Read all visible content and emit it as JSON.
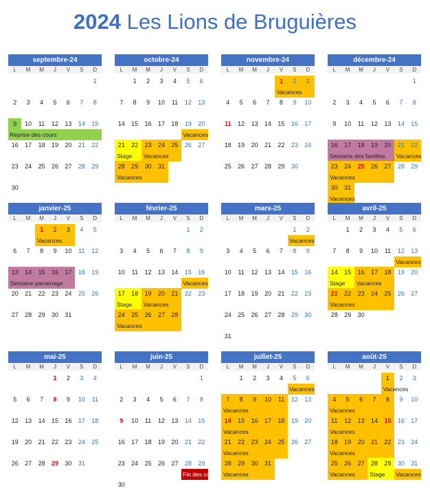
{
  "title": {
    "year": "2024",
    "text": "Les Lions de Bruguières"
  },
  "weekdays": [
    "L",
    "M",
    "M",
    "J",
    "V",
    "S",
    "D"
  ],
  "colors": {
    "header": "#4472c4",
    "vacances": "#ffc000",
    "stage": "#ffff00",
    "reprise": "#92d050",
    "semaine": "#c27ba0",
    "fin": "#c00000"
  },
  "months": [
    {
      "name": "septembre-24",
      "start": 6,
      "days": 30,
      "holidays": [],
      "bands": [
        {
          "color": "#92d050",
          "from": 9,
          "to": 9,
          "extend": false
        },
        {
          "color": "#92d050",
          "label_row": 2,
          "label_col_from": 0,
          "label_col_to": 6,
          "label": "Reprise des cours"
        }
      ]
    },
    {
      "name": "octobre-24",
      "start": 1,
      "days": 31,
      "holidays": [],
      "bands": [
        {
          "color": "#ffc000",
          "label_row": 2,
          "label_col_from": 5,
          "label_col_to": 6,
          "label": "Vacances"
        },
        {
          "color": "#ffff00",
          "from": 21,
          "to": 22,
          "extend": true,
          "label": "Stage"
        },
        {
          "color": "#ffc000",
          "from": 23,
          "to": 25,
          "extend": true,
          "label": "Vacances"
        },
        {
          "color": "#ffc000",
          "from": 28,
          "to": 31,
          "extend": true,
          "label": "Vacances"
        }
      ]
    },
    {
      "name": "novembre-24",
      "start": 4,
      "days": 30,
      "holidays": [
        1,
        11
      ],
      "bands": [
        {
          "color": "#ffc000",
          "from": 1,
          "to": 3,
          "extend": true,
          "label": "Vacances"
        }
      ]
    },
    {
      "name": "décembre-24",
      "start": 6,
      "days": 31,
      "holidays": [
        25
      ],
      "bands": [
        {
          "color": "#c27ba0",
          "from": 16,
          "to": 20,
          "extend": true,
          "label": "Semaine des familles"
        },
        {
          "color": "#ffc000",
          "from": 21,
          "to": 22,
          "extend": true,
          "label": "Vacances"
        },
        {
          "color": "#ffc000",
          "from": 23,
          "to": 27,
          "extend": true,
          "label": "Vacances"
        },
        {
          "color": "#ffc000",
          "from": 30,
          "to": 31,
          "extend": true,
          "label": "Vacances"
        }
      ]
    },
    {
      "name": "janvier-25",
      "start": 2,
      "days": 31,
      "holidays": [
        1
      ],
      "bands": [
        {
          "color": "#ffc000",
          "from": 1,
          "to": 3,
          "extend": true,
          "label": "Vacances"
        },
        {
          "color": "#c27ba0",
          "from": 13,
          "to": 17,
          "extend": true,
          "label": "Semaine parrainage"
        }
      ]
    },
    {
      "name": "février-25",
      "start": 5,
      "days": 28,
      "holidays": [],
      "bands": [
        {
          "color": "#ffc000",
          "label_row": 2,
          "label_col_from": 5,
          "label_col_to": 6,
          "label": "Vacances"
        },
        {
          "color": "#ffff00",
          "from": 17,
          "to": 18,
          "extend": true,
          "label": "Stage"
        },
        {
          "color": "#ffc000",
          "from": 19,
          "to": 21,
          "extend": true,
          "label": "Vacances"
        },
        {
          "color": "#ffc000",
          "from": 24,
          "to": 28,
          "extend": true,
          "label": "Vacances"
        }
      ]
    },
    {
      "name": "mars-25",
      "start": 5,
      "days": 31,
      "holidays": [],
      "bands": [
        {
          "color": "#ffc000",
          "label_row": 0,
          "label_col_from": 5,
          "label_col_to": 6,
          "label": "Vacances"
        }
      ]
    },
    {
      "name": "avril-25",
      "start": 1,
      "days": 30,
      "holidays": [
        21
      ],
      "bands": [
        {
          "color": "#ffc000",
          "label_row": 1,
          "label_col_from": 5,
          "label_col_to": 6,
          "label": "Vacances"
        },
        {
          "color": "#ffff00",
          "from": 14,
          "to": 15,
          "extend": true,
          "label": "Stage"
        },
        {
          "color": "#ffc000",
          "from": 16,
          "to": 18,
          "extend": true,
          "label": "Vacances"
        },
        {
          "color": "#ffc000",
          "from": 21,
          "to": 25,
          "extend": true,
          "label": "Vacances"
        }
      ]
    },
    {
      "name": "mai-25",
      "start": 3,
      "days": 31,
      "holidays": [
        1,
        8,
        29
      ],
      "bands": []
    },
    {
      "name": "juin-25",
      "start": 6,
      "days": 30,
      "holidays": [
        9
      ],
      "bands": [
        {
          "color": "#c00000",
          "label_row": 4,
          "label_col_from": 5,
          "label_col_to": 6,
          "label": "Fin des cours",
          "red": true
        }
      ]
    },
    {
      "name": "juillet-25",
      "start": 1,
      "days": 31,
      "holidays": [
        14
      ],
      "bands": [
        {
          "color": "#ffc000",
          "label_row": 0,
          "label_col_from": 5,
          "label_col_to": 6,
          "label": "Vacances"
        },
        {
          "color": "#ffc000",
          "from": 7,
          "to": 11,
          "extend": true,
          "label": "Vacances"
        },
        {
          "color": "#ffc000",
          "from": 14,
          "to": 18,
          "extend": true,
          "label": "Vacances"
        },
        {
          "color": "#ffc000",
          "from": 21,
          "to": 25,
          "extend": true,
          "label": "Vacances"
        },
        {
          "color": "#ffc000",
          "from": 28,
          "to": 31,
          "extend": true,
          "label": "Vacances"
        }
      ]
    },
    {
      "name": "août-25",
      "start": 4,
      "days": 31,
      "holidays": [
        15
      ],
      "bands": [
        {
          "color": "#ffc000",
          "from": 1,
          "to": 1,
          "extend": true,
          "label": "Vacances"
        },
        {
          "color": "#ffc000",
          "from": 4,
          "to": 8,
          "extend": true,
          "label": "Vacances"
        },
        {
          "color": "#ffc000",
          "from": 11,
          "to": 15,
          "extend": true,
          "label": "Vacances"
        },
        {
          "color": "#ffc000",
          "from": 18,
          "to": 22,
          "extend": true,
          "label": "Vacances"
        },
        {
          "color": "#ffc000",
          "from": 25,
          "to": 27,
          "extend": true,
          "label": "Vacances"
        },
        {
          "color": "#ffff00",
          "from": 28,
          "to": 29,
          "extend": true,
          "label": "Stage"
        },
        {
          "color": "#ffc000",
          "label_row": 4,
          "label_col_from": 5,
          "label_col_to": 6,
          "label": "Vacances"
        }
      ]
    }
  ]
}
